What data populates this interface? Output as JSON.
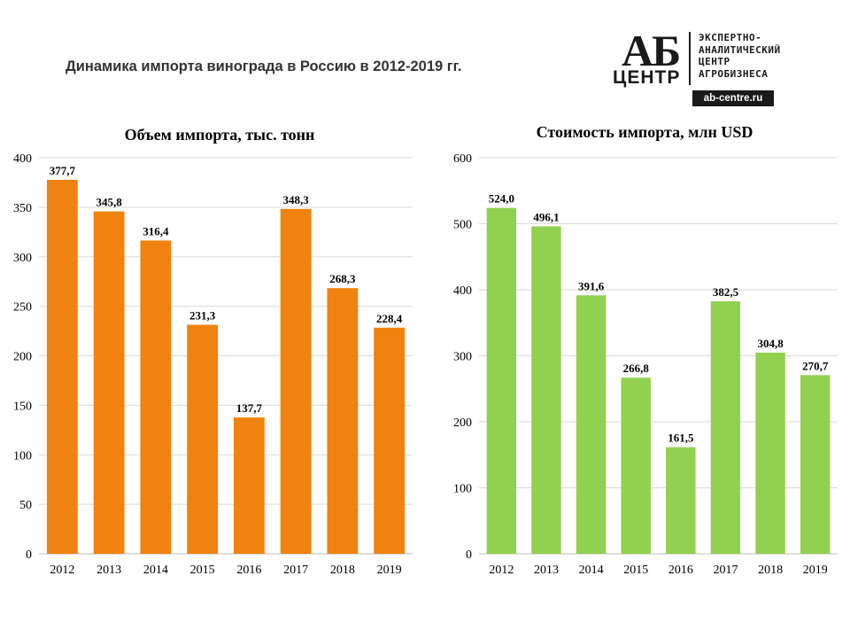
{
  "page": {
    "title": "Динамика импорта винограда  в Россию в 2012-2019 гг."
  },
  "logo": {
    "mark": "АБ",
    "center": "ЦЕНТР",
    "lines": [
      "ЭКСПЕРТНО-",
      "АНАЛИТИЧЕСКИЙ",
      "ЦЕНТР",
      "АГРОБИЗНЕСА"
    ],
    "url": "ab-centre.ru"
  },
  "chart_data": [
    {
      "type": "bar",
      "title": "Объем импорта, тыс. тонн",
      "categories": [
        "2012",
        "2013",
        "2014",
        "2015",
        "2016",
        "2017",
        "2018",
        "2019"
      ],
      "values": [
        377.7,
        345.8,
        316.4,
        231.3,
        137.7,
        348.3,
        268.3,
        228.4
      ],
      "labels": [
        "377,7",
        "345,8",
        "316,4",
        "231,3",
        "137,7",
        "348,3",
        "268,3",
        "228,4"
      ],
      "ylim": [
        0,
        400
      ],
      "yticks": [
        0,
        50,
        100,
        150,
        200,
        250,
        300,
        350,
        400
      ],
      "color": "#F0820F",
      "grid": true,
      "xlabel": "",
      "ylabel": ""
    },
    {
      "type": "bar",
      "title": "Стоимость импорта, млн USD",
      "categories": [
        "2012",
        "2013",
        "2014",
        "2015",
        "2016",
        "2017",
        "2018",
        "2019"
      ],
      "values": [
        524.0,
        496.1,
        391.6,
        266.8,
        161.5,
        382.5,
        304.8,
        270.7
      ],
      "labels": [
        "524,0",
        "496,1",
        "391,6",
        "266,8",
        "161,5",
        "382,5",
        "304,8",
        "270,7"
      ],
      "ylim": [
        0,
        600
      ],
      "yticks": [
        0,
        100,
        200,
        300,
        400,
        500,
        600
      ],
      "color": "#92D050",
      "grid": true,
      "xlabel": "",
      "ylabel": ""
    }
  ]
}
